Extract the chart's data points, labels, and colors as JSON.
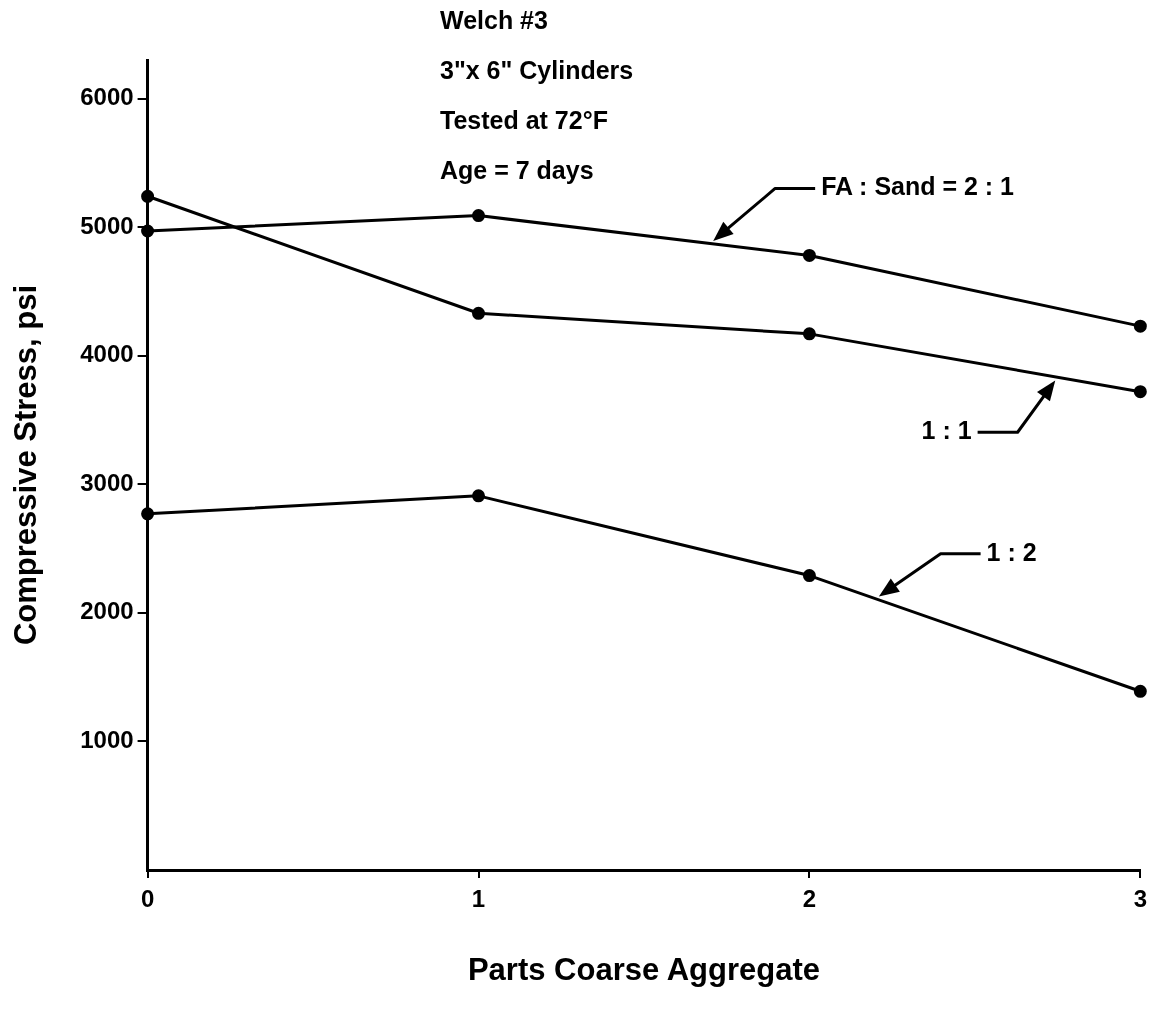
{
  "chart_data": {
    "type": "line",
    "xlabel": "Parts Coarse Aggregate",
    "ylabel": "Compressive Stress, psi",
    "annotations": [
      "Welch #3",
      "3\"x 6\" Cylinders",
      "Tested at 72°F",
      "Age = 7 days"
    ],
    "x": [
      0,
      1,
      2,
      3
    ],
    "series": [
      {
        "name": "FA : Sand = 2 : 1",
        "color": "#000000",
        "values": [
          4970,
          5090,
          4780,
          4230
        ]
      },
      {
        "name": "1 : 1",
        "color": "#000000",
        "values": [
          5240,
          4330,
          4170,
          3720
        ]
      },
      {
        "name": "1 : 2",
        "color": "#000000",
        "values": [
          2770,
          2910,
          2290,
          1390
        ]
      }
    ],
    "xlim": [
      0,
      3
    ],
    "xticks": [
      0,
      1,
      2,
      3
    ],
    "ylim": [
      0,
      6300
    ],
    "yticks": [
      1000,
      2000,
      3000,
      4000,
      5000,
      6000
    ],
    "grid": false,
    "legend": false,
    "marker": "circle",
    "line_style": "solid"
  }
}
